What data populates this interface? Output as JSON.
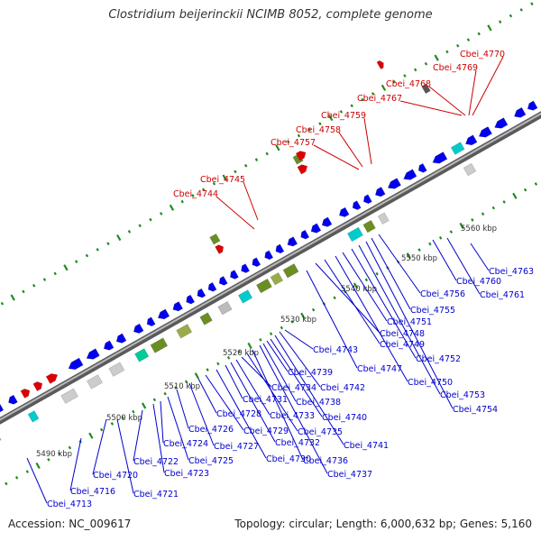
{
  "title": "Clostridium beijerinckii NCIMB 8052, complete genome",
  "footer": {
    "accession": "Accession: NC_009617",
    "topology": "Topology: circular; Length: 6,000,632 bp; Genes: 5,160"
  },
  "colors": {
    "plus_strand": "#0000ee",
    "highlight": "#ee0000",
    "other_feature": "#6b8e23",
    "backbone": "#888888",
    "label_blue": "#0000cc",
    "label_red": "#cc0000",
    "tick": "#228b22"
  },
  "scale_labels": [
    "5490 kbp",
    "5500 kbp",
    "5510 kbp",
    "5520 kbp",
    "5530 kbp",
    "5540 kbp",
    "5550 kbp",
    "5560 kbp"
  ],
  "labels_red": [
    "Cbei_4744",
    "Cbei_4745",
    "Cbei_4757",
    "Cbei_4758",
    "Cbei_4759",
    "Cbei_4767",
    "Cbei_4768",
    "Cbei_4769",
    "Cbei_4770"
  ],
  "labels_blue": [
    "Cbei_4713",
    "Cbei_4716",
    "Cbei_4720",
    "Cbei_4721",
    "Cbei_4722",
    "Cbei_4723",
    "Cbei_4724",
    "Cbei_4725",
    "Cbei_4726",
    "Cbei_4727",
    "Cbei_4728",
    "Cbei_4729",
    "Cbei_4730",
    "Cbei_4731",
    "Cbei_4732",
    "Cbei_4733",
    "Cbei_4734",
    "Cbei_4735",
    "Cbei_4736",
    "Cbei_4737",
    "Cbei_4738",
    "Cbei_4739",
    "Cbei_4740",
    "Cbei_4741",
    "Cbei_4742",
    "Cbei_4743",
    "Cbei_4747",
    "Cbei_4748",
    "Cbei_4749",
    "Cbei_4750",
    "Cbei_4751",
    "Cbei_4752",
    "Cbei_4753",
    "Cbei_4754",
    "Cbei_4755",
    "Cbei_4756",
    "Cbei_4760",
    "Cbei_4761",
    "Cbei_4763"
  ]
}
